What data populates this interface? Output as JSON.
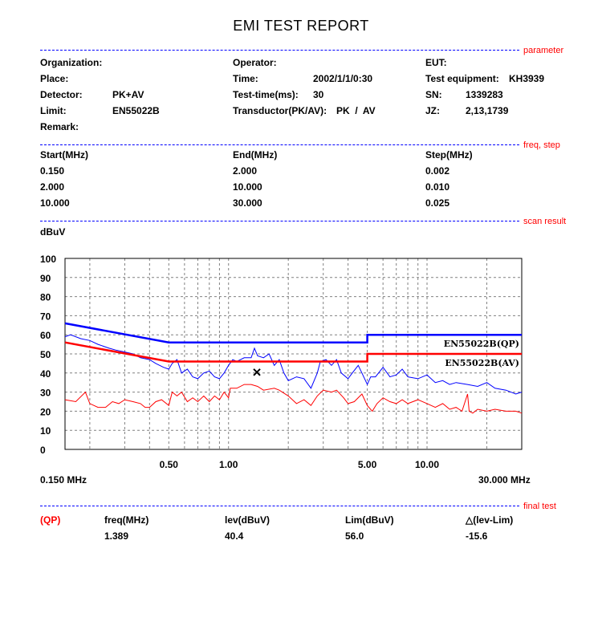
{
  "title": "EMI TEST REPORT",
  "sections": {
    "parameter": "parameter",
    "freq_step": "freq, step",
    "scan_result": "scan result",
    "final_test": "final test"
  },
  "parameters": {
    "organization_label": "Organization:",
    "organization": "",
    "place_label": "Place:",
    "place": "",
    "detector_label": "Detector:",
    "detector": "PK+AV",
    "limit_label": "Limit:",
    "limit": "EN55022B",
    "remark_label": "Remark:",
    "remark": "",
    "operator_label": "Operator:",
    "operator": "",
    "time_label": "Time:",
    "time": "2002/1/1/0:30",
    "test_time_label": "Test-time(ms):",
    "test_time": "30",
    "transductor_label": "Transductor(PK/AV):",
    "transductor": "PK  /  AV",
    "eut_label": "EUT:",
    "eut": "",
    "equipment_label": "Test equipment:",
    "equipment": "KH3939",
    "sn_label": "SN:",
    "sn": "1339283",
    "jz_label": "JZ:",
    "jz": "2,13,1739"
  },
  "freq_step": {
    "headers": [
      "Start(MHz)",
      "End(MHz)",
      "Step(MHz)"
    ],
    "rows": [
      [
        "0.150",
        "2.000",
        "0.002"
      ],
      [
        "2.000",
        "10.000",
        "0.010"
      ],
      [
        "10.000",
        "30.000",
        "0.025"
      ]
    ]
  },
  "final_test": {
    "detector": "(QP)",
    "headers": [
      "freq(MHz)",
      "lev(dBuV)",
      "Lim(dBuV)",
      "△(lev-Lim)"
    ],
    "values": [
      "1.389",
      "40.4",
      "56.0",
      "-15.6"
    ]
  },
  "chart_data": {
    "type": "line",
    "ylabel": "dBuV",
    "x_scale": "log",
    "xlim": [
      0.15,
      30
    ],
    "ylim": [
      0,
      100
    ],
    "yticks": [
      "0",
      "10",
      "20",
      "30",
      "40",
      "50",
      "60",
      "70",
      "80",
      "90",
      "100"
    ],
    "xtick_labels": [
      {
        "v": 0.5,
        "label": "0.50"
      },
      {
        "v": 1,
        "label": "1.00"
      },
      {
        "v": 5,
        "label": "5.00"
      },
      {
        "v": 10,
        "label": "10.00"
      }
    ],
    "x_start_label": "0.150 MHz",
    "x_end_label": "30.000 MHz",
    "grid": true,
    "colors": {
      "qp_limit": "#0000ff",
      "av_limit": "#ff0000",
      "peak": "#0000ff",
      "average": "#ff0000",
      "marker": "#000000"
    },
    "limits": [
      {
        "name": "EN55022B(QP)",
        "points": [
          [
            0.15,
            66
          ],
          [
            0.5,
            56
          ],
          [
            5,
            56
          ],
          [
            5,
            60
          ],
          [
            30,
            60
          ]
        ]
      },
      {
        "name": "EN55022B(AV)",
        "points": [
          [
            0.15,
            56
          ],
          [
            0.5,
            46
          ],
          [
            5,
            46
          ],
          [
            5,
            50
          ],
          [
            30,
            50
          ]
        ]
      }
    ],
    "series": [
      {
        "points": [
          [
            0.15,
            59
          ],
          [
            0.16,
            60
          ],
          [
            0.18,
            58
          ],
          [
            0.2,
            57
          ],
          [
            0.22,
            55
          ],
          [
            0.25,
            53
          ],
          [
            0.27,
            52
          ],
          [
            0.3,
            51
          ],
          [
            0.33,
            50
          ],
          [
            0.36,
            48
          ],
          [
            0.4,
            47
          ],
          [
            0.43,
            45
          ],
          [
            0.47,
            43
          ],
          [
            0.5,
            42
          ],
          [
            0.52,
            45
          ],
          [
            0.55,
            47
          ],
          [
            0.58,
            40
          ],
          [
            0.62,
            42
          ],
          [
            0.66,
            38
          ],
          [
            0.7,
            37
          ],
          [
            0.75,
            40
          ],
          [
            0.8,
            41
          ],
          [
            0.85,
            38
          ],
          [
            0.9,
            37
          ],
          [
            0.95,
            40
          ],
          [
            1.0,
            44
          ],
          [
            1.05,
            47
          ],
          [
            1.1,
            46
          ],
          [
            1.2,
            48
          ],
          [
            1.3,
            48
          ],
          [
            1.35,
            53
          ],
          [
            1.4,
            49
          ],
          [
            1.5,
            48
          ],
          [
            1.6,
            50
          ],
          [
            1.7,
            44
          ],
          [
            1.8,
            47
          ],
          [
            1.9,
            40
          ],
          [
            2.0,
            36
          ],
          [
            2.2,
            38
          ],
          [
            2.4,
            37
          ],
          [
            2.6,
            32
          ],
          [
            2.8,
            40
          ],
          [
            2.9,
            46
          ],
          [
            3.1,
            47
          ],
          [
            3.3,
            44
          ],
          [
            3.5,
            47
          ],
          [
            3.7,
            40
          ],
          [
            4.0,
            37
          ],
          [
            4.2,
            40
          ],
          [
            4.5,
            44
          ],
          [
            4.7,
            40
          ],
          [
            5.0,
            34
          ],
          [
            5.2,
            38
          ],
          [
            5.5,
            38
          ],
          [
            6.0,
            43
          ],
          [
            6.5,
            38
          ],
          [
            7,
            39
          ],
          [
            7.5,
            42
          ],
          [
            8,
            38
          ],
          [
            9,
            37
          ],
          [
            10,
            39
          ],
          [
            11,
            35
          ],
          [
            12,
            36
          ],
          [
            13,
            34
          ],
          [
            14,
            35
          ],
          [
            16,
            34
          ],
          [
            18,
            33
          ],
          [
            20,
            35
          ],
          [
            22,
            32
          ],
          [
            25,
            31
          ],
          [
            28,
            29
          ],
          [
            30,
            30
          ]
        ]
      },
      {
        "points": [
          [
            0.15,
            26
          ],
          [
            0.17,
            25
          ],
          [
            0.19,
            30
          ],
          [
            0.2,
            24
          ],
          [
            0.22,
            22
          ],
          [
            0.24,
            22
          ],
          [
            0.26,
            25
          ],
          [
            0.28,
            24
          ],
          [
            0.3,
            26
          ],
          [
            0.33,
            25
          ],
          [
            0.36,
            24
          ],
          [
            0.38,
            22
          ],
          [
            0.4,
            22
          ],
          [
            0.43,
            25
          ],
          [
            0.46,
            26
          ],
          [
            0.5,
            23
          ],
          [
            0.52,
            30
          ],
          [
            0.55,
            28
          ],
          [
            0.58,
            30
          ],
          [
            0.62,
            25
          ],
          [
            0.66,
            27
          ],
          [
            0.7,
            25
          ],
          [
            0.75,
            28
          ],
          [
            0.8,
            25
          ],
          [
            0.85,
            28
          ],
          [
            0.9,
            26
          ],
          [
            0.95,
            30
          ],
          [
            1.0,
            27
          ],
          [
            1.02,
            32
          ],
          [
            1.1,
            32
          ],
          [
            1.2,
            34
          ],
          [
            1.3,
            34
          ],
          [
            1.4,
            33
          ],
          [
            1.5,
            31
          ],
          [
            1.7,
            32
          ],
          [
            1.8,
            31
          ],
          [
            2.0,
            28
          ],
          [
            2.2,
            24
          ],
          [
            2.4,
            26
          ],
          [
            2.6,
            23
          ],
          [
            2.8,
            28
          ],
          [
            3.0,
            31
          ],
          [
            3.3,
            30
          ],
          [
            3.5,
            31
          ],
          [
            3.8,
            27
          ],
          [
            4.0,
            24
          ],
          [
            4.3,
            25
          ],
          [
            4.7,
            29
          ],
          [
            5.0,
            23
          ],
          [
            5.3,
            20
          ],
          [
            5.6,
            24
          ],
          [
            6,
            27
          ],
          [
            6.5,
            25
          ],
          [
            7,
            24
          ],
          [
            7.5,
            26
          ],
          [
            8,
            24
          ],
          [
            9,
            26
          ],
          [
            10,
            24
          ],
          [
            11,
            22
          ],
          [
            12,
            24
          ],
          [
            13,
            21
          ],
          [
            14,
            22
          ],
          [
            15,
            20
          ],
          [
            16,
            29
          ],
          [
            16.3,
            20
          ],
          [
            17,
            19
          ],
          [
            18,
            21
          ],
          [
            20,
            20
          ],
          [
            22,
            21
          ],
          [
            25,
            20
          ],
          [
            28,
            20
          ],
          [
            30,
            19
          ]
        ]
      }
    ],
    "marker": {
      "x": 1.389,
      "y": 40.4,
      "symbol": "x"
    }
  }
}
